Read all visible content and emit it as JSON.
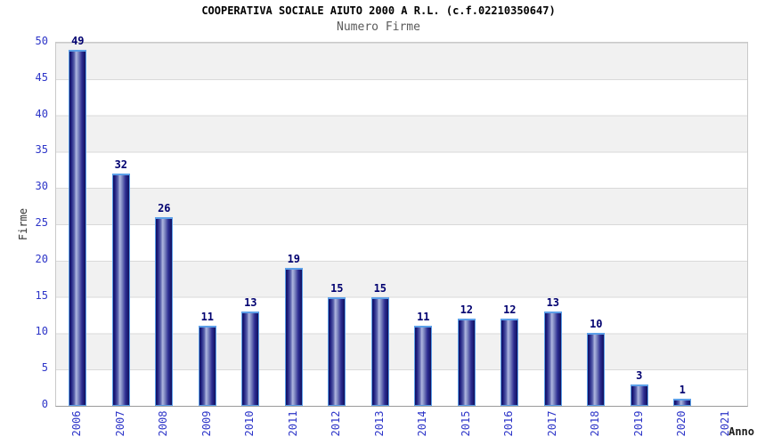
{
  "chart_data": {
    "type": "bar",
    "title": "COOPERATIVA SOCIALE AIUTO 2000 A R.L. (c.f.02210350647)",
    "subtitle": "Numero Firme",
    "xlabel": "Anno",
    "ylabel": "Firme",
    "categories": [
      "2006",
      "2007",
      "2008",
      "2009",
      "2010",
      "2011",
      "2012",
      "2013",
      "2014",
      "2015",
      "2016",
      "2017",
      "2018",
      "2019",
      "2020",
      "2021"
    ],
    "values": [
      49,
      32,
      26,
      11,
      13,
      19,
      15,
      15,
      11,
      12,
      12,
      13,
      10,
      3,
      1,
      0
    ],
    "ylim": [
      0,
      50
    ],
    "yticks": [
      0,
      5,
      10,
      15,
      20,
      25,
      30,
      35,
      40,
      45,
      50
    ],
    "grid": "horizontal gridlines every 5 units with alternating white/gray bands",
    "legend": "none",
    "value_labels": "above each bar, hidden when value is 0",
    "colors": {
      "bar_edge_dark": "#11115e",
      "bar_mid_dark": "#2c2c91",
      "bar_highlight": "#b0b7e0",
      "bar_border": "#5c9fe8",
      "axis_tick_label": "#2d35c8",
      "value_label": "#000070",
      "band_gray": "#f1f1f1",
      "band_white": "#ffffff",
      "grid_line": "#d9d9d9",
      "axis_line": "#9b9b9b",
      "plot_border": "#c9c9c9",
      "title_color": "#000000",
      "subtitle_color": "#5a5a5a",
      "background": "#ffffff"
    }
  }
}
